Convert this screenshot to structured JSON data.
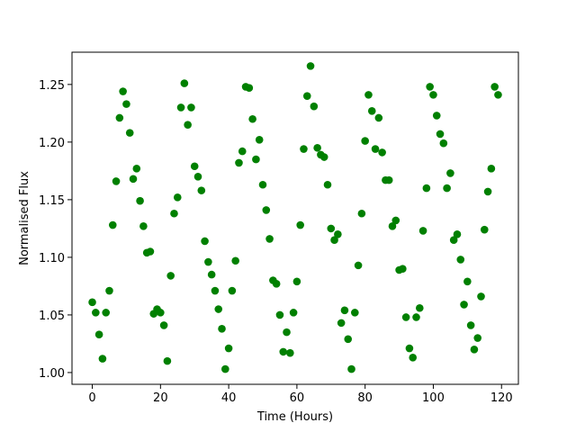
{
  "chart_data": {
    "type": "scatter",
    "xlabel": "Time (Hours)",
    "ylabel": "Normalised Flux",
    "color": "#008000",
    "xlim": [
      -5.95,
      124.95
    ],
    "ylim": [
      0.9898,
      1.278
    ],
    "xticks": [
      0,
      20,
      40,
      60,
      80,
      100,
      120
    ],
    "yticks": [
      {
        "value": 1.0,
        "label": "1.00"
      },
      1.05,
      {
        "value": 1.1,
        "label": "1.10"
      },
      1.15,
      {
        "value": 1.2,
        "label": "1.20"
      },
      1.25
    ],
    "x": [
      0,
      1,
      2,
      3,
      4,
      5,
      6,
      7,
      8,
      9,
      10,
      11,
      12,
      13,
      14,
      15,
      16,
      17,
      18,
      19,
      20,
      21,
      22,
      23,
      24,
      25,
      26,
      27,
      28,
      29,
      30,
      31,
      32,
      33,
      34,
      35,
      36,
      37,
      38,
      39,
      40,
      41,
      42,
      43,
      44,
      45,
      46,
      47,
      48,
      49,
      50,
      51,
      52,
      53,
      54,
      55,
      56,
      57,
      58,
      59,
      60,
      61,
      62,
      63,
      64,
      65,
      66,
      67,
      68,
      69,
      70,
      71,
      72,
      73,
      74,
      75,
      76,
      77,
      78,
      79,
      80,
      81,
      82,
      83,
      84,
      85,
      86,
      87,
      88,
      89,
      90,
      91,
      92,
      93,
      94,
      95,
      96,
      97,
      98,
      99,
      100,
      101,
      102,
      103,
      104,
      105,
      106,
      107,
      108,
      109,
      110,
      111,
      112,
      113,
      114,
      115,
      116,
      117,
      118,
      119
    ],
    "y": [
      1.061,
      1.052,
      1.033,
      1.012,
      1.052,
      1.071,
      1.128,
      1.166,
      1.221,
      1.244,
      1.233,
      1.208,
      1.168,
      1.177,
      1.149,
      1.127,
      1.104,
      1.105,
      1.051,
      1.055,
      1.052,
      1.041,
      1.01,
      1.084,
      1.138,
      1.152,
      1.23,
      1.251,
      1.215,
      1.23,
      1.179,
      1.17,
      1.158,
      1.114,
      1.096,
      1.085,
      1.071,
      1.055,
      1.038,
      1.003,
      1.021,
      1.071,
      1.097,
      1.182,
      1.192,
      1.248,
      1.247,
      1.22,
      1.185,
      1.202,
      1.163,
      1.141,
      1.116,
      1.08,
      1.077,
      1.05,
      1.018,
      1.035,
      1.017,
      1.052,
      1.079,
      1.128,
      1.194,
      1.24,
      1.266,
      1.231,
      1.195,
      1.189,
      1.187,
      1.163,
      1.125,
      1.115,
      1.12,
      1.043,
      1.054,
      1.029,
      1.003,
      1.052,
      1.093,
      1.138,
      1.201,
      1.241,
      1.227,
      1.194,
      1.221,
      1.191,
      1.167,
      1.167,
      1.127,
      1.132,
      1.089,
      1.09,
      1.048,
      1.021,
      1.013,
      1.048,
      1.056,
      1.123,
      1.16,
      1.248,
      1.241,
      1.223,
      1.207,
      1.199,
      1.16,
      1.173,
      1.115,
      1.12,
      1.098,
      1.059,
      1.079,
      1.041,
      1.02,
      1.03,
      1.066,
      1.124,
      1.157,
      1.177,
      1.248,
      1.241
    ]
  }
}
